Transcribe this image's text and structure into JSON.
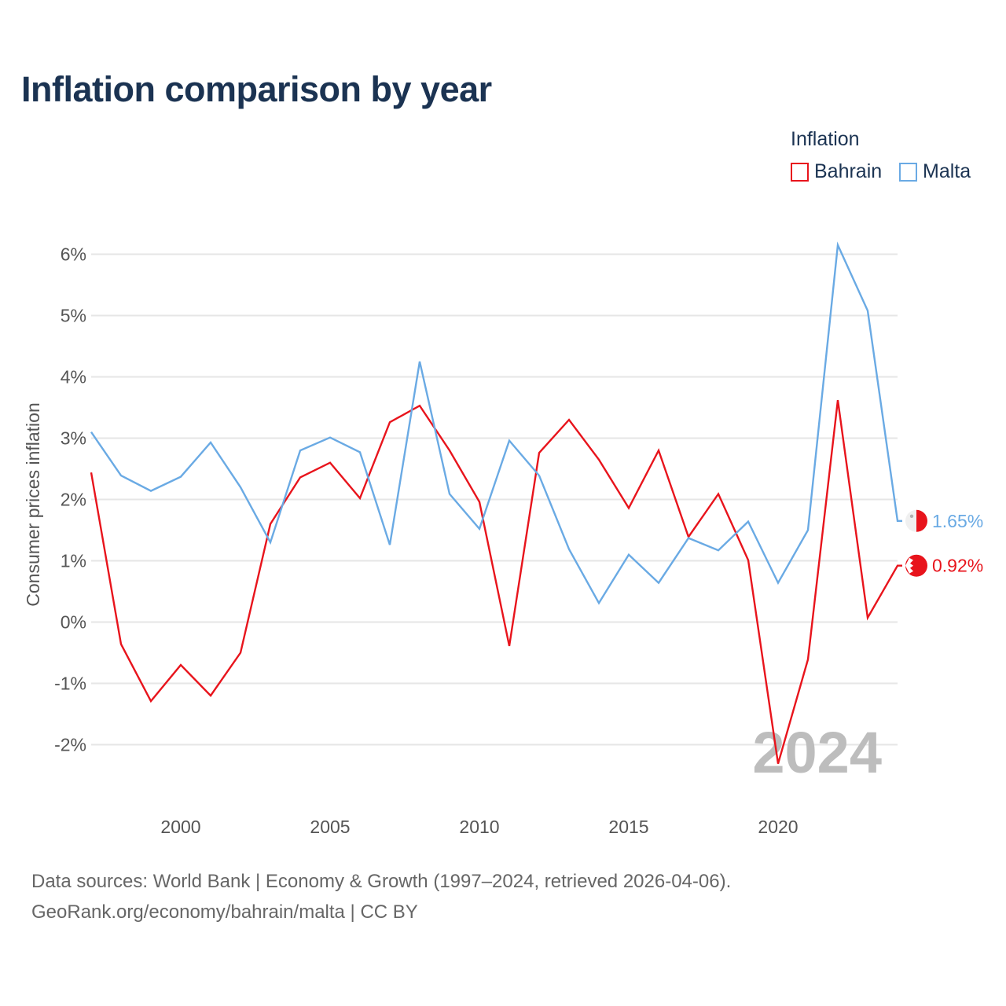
{
  "title": "Inflation comparison by year",
  "legend": {
    "title": "Inflation",
    "items": [
      {
        "label": "Bahrain",
        "color": "#e8141c"
      },
      {
        "label": "Malta",
        "color": "#6aaae4"
      }
    ]
  },
  "source": {
    "line1": "Data sources: World Bank | Economy & Growth (1997–2024, retrieved 2026-04-06).",
    "line2": "GeoRank.org/economy/bahrain/malta | CC BY"
  },
  "chart_data": {
    "type": "line",
    "title": "Inflation comparison by year",
    "ylabel": "Consumer prices inflation",
    "xlabel": "",
    "xlim": [
      1997,
      2024
    ],
    "ylim": [
      -3.0,
      6.5
    ],
    "y_ticks": [
      6,
      5,
      4,
      3,
      2,
      1,
      0,
      -1,
      -2
    ],
    "y_tick_labels": [
      "6%",
      "5%",
      "4%",
      "3%",
      "2%",
      "1%",
      "0%",
      "-1%",
      "-2%"
    ],
    "x_ticks": [
      2000,
      2005,
      2010,
      2015,
      2020
    ],
    "x_tick_labels": [
      "2000",
      "2005",
      "2010",
      "2015",
      "2020"
    ],
    "grid": true,
    "year_watermark": "2024",
    "x": [
      1997,
      1998,
      1999,
      2000,
      2001,
      2002,
      2003,
      2004,
      2005,
      2006,
      2007,
      2008,
      2009,
      2010,
      2011,
      2012,
      2013,
      2014,
      2015,
      2016,
      2017,
      2018,
      2019,
      2020,
      2021,
      2022,
      2023,
      2024
    ],
    "series": [
      {
        "name": "Bahrain",
        "color": "#e8141c",
        "end_label": "0.92%",
        "values": [
          2.44,
          -0.36,
          -1.29,
          -0.7,
          -1.2,
          -0.5,
          1.6,
          2.36,
          2.6,
          2.02,
          3.26,
          3.53,
          2.8,
          1.96,
          -0.39,
          2.76,
          3.3,
          2.65,
          1.86,
          2.8,
          1.39,
          2.09,
          1.01,
          -2.31,
          -0.61,
          3.62,
          0.07,
          0.92
        ]
      },
      {
        "name": "Malta",
        "color": "#6aaae4",
        "end_label": "1.65%",
        "values": [
          3.1,
          2.39,
          2.14,
          2.37,
          2.93,
          2.2,
          1.3,
          2.8,
          3.01,
          2.77,
          1.26,
          4.25,
          2.09,
          1.52,
          2.96,
          2.39,
          1.19,
          0.31,
          1.1,
          0.64,
          1.37,
          1.17,
          1.64,
          0.64,
          1.5,
          6.15,
          5.08,
          1.65
        ]
      }
    ]
  }
}
